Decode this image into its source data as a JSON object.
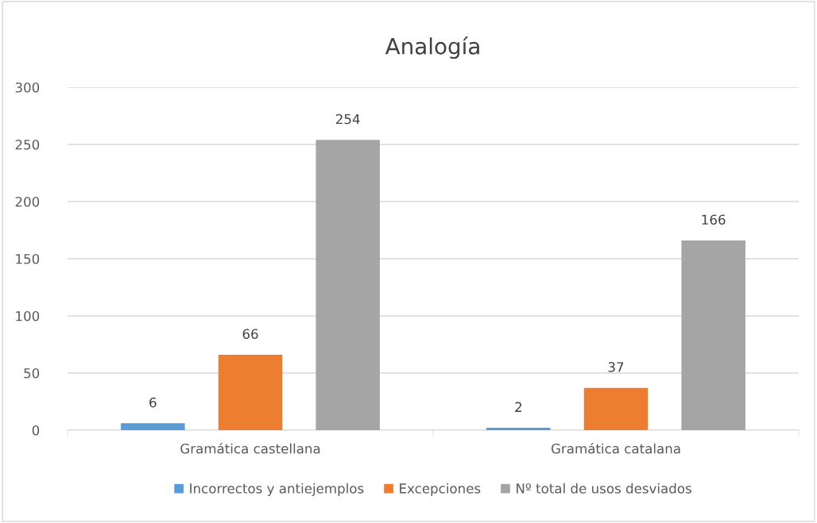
{
  "chart_data": {
    "type": "bar",
    "title": "Analogía",
    "categories": [
      "Gramática castellana",
      "Gramática catalana"
    ],
    "series": [
      {
        "name": "Incorrectos y antiejemplos",
        "color": "#5b9bd5",
        "values": [
          6,
          2
        ]
      },
      {
        "name": "Excepciones",
        "color": "#ed7d31",
        "values": [
          66,
          37
        ]
      },
      {
        "name": "Nº total de usos desviados",
        "color": "#a5a5a5",
        "values": [
          254,
          166
        ]
      }
    ],
    "ylim": [
      0,
      300
    ],
    "yticks": [
      0,
      50,
      100,
      150,
      200,
      250,
      300
    ],
    "grid": "y",
    "legend": "bottom",
    "data_labels": true
  }
}
